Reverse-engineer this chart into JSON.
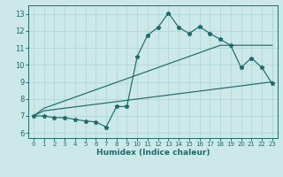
{
  "xlabel": "Humidex (Indice chaleur)",
  "xlim": [
    -0.5,
    23.5
  ],
  "ylim": [
    5.7,
    13.5
  ],
  "xticks": [
    0,
    1,
    2,
    3,
    4,
    5,
    6,
    7,
    8,
    9,
    10,
    11,
    12,
    13,
    14,
    15,
    16,
    17,
    18,
    19,
    20,
    21,
    22,
    23
  ],
  "yticks": [
    6,
    7,
    8,
    9,
    10,
    11,
    12,
    13
  ],
  "bg_color": "#cce8e8",
  "line_color": "#1e6b6b",
  "grid_color": "#aad4d4",
  "line1_x": [
    0,
    1,
    2,
    3,
    4,
    5,
    6,
    7,
    8,
    9,
    10,
    11,
    12,
    13,
    14,
    15,
    16,
    17,
    18,
    19,
    20,
    21,
    22,
    23
  ],
  "line1_y": [
    7.0,
    7.0,
    6.9,
    6.9,
    6.8,
    6.7,
    6.65,
    6.35,
    7.55,
    7.55,
    10.5,
    11.75,
    12.2,
    13.05,
    12.2,
    11.85,
    12.25,
    11.85,
    11.5,
    11.15,
    9.85,
    10.4,
    9.85,
    8.9
  ],
  "line2_x": [
    0,
    1,
    23
  ],
  "line2_y": [
    7.0,
    7.3,
    9.0
  ],
  "line3_x": [
    0,
    1,
    18,
    23
  ],
  "line3_y": [
    7.0,
    7.45,
    11.15,
    11.15
  ],
  "marker_size": 3.5
}
